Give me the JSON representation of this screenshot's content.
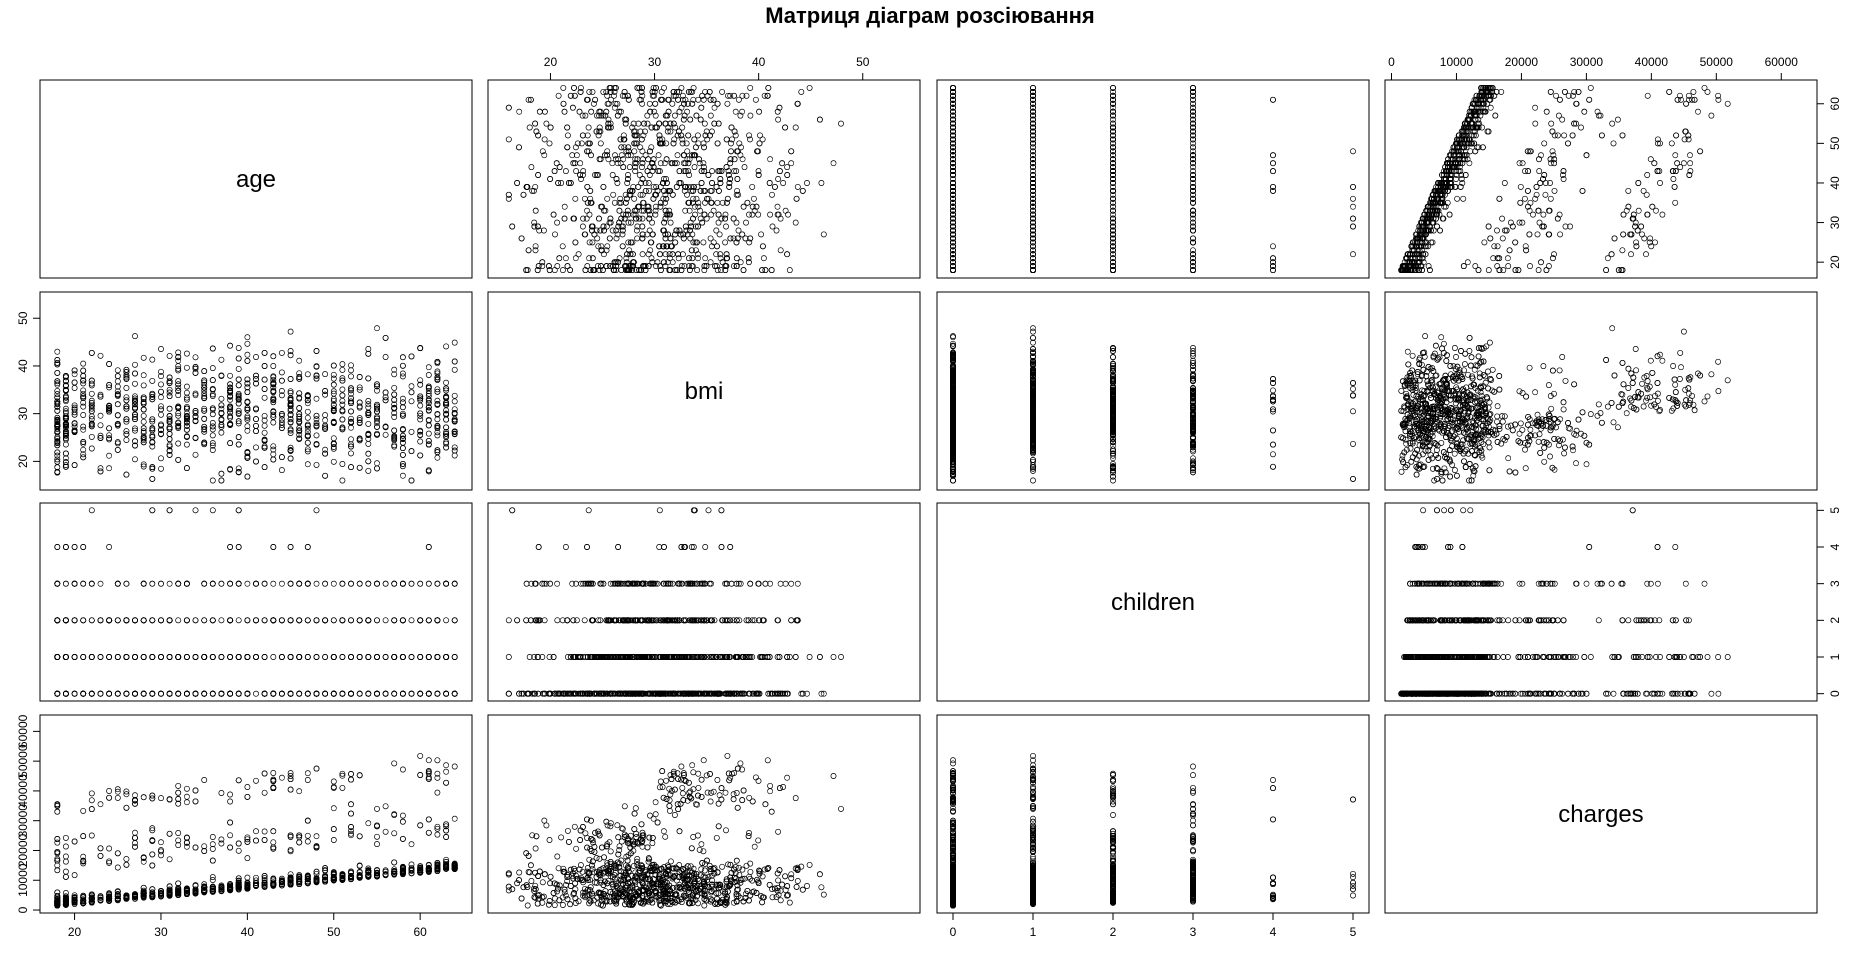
{
  "chart_data": {
    "type": "scatter",
    "subtype": "scatterplot-matrix",
    "title": "Матриця діаграм розсіювання",
    "variables": [
      {
        "key": "age",
        "label": "age",
        "range": [
          16,
          66
        ],
        "ticks": [
          {
            "v": 20,
            "label": "20"
          },
          {
            "v": 30,
            "label": "30"
          },
          {
            "v": 40,
            "label": "40"
          },
          {
            "v": 50,
            "label": "50"
          },
          {
            "v": 60,
            "label": "60"
          }
        ]
      },
      {
        "key": "bmi",
        "label": "bmi",
        "range": [
          14,
          55.5
        ],
        "ticks": [
          {
            "v": 20,
            "label": "20"
          },
          {
            "v": 30,
            "label": "30"
          },
          {
            "v": 40,
            "label": "40"
          },
          {
            "v": 50,
            "label": "50"
          }
        ]
      },
      {
        "key": "children",
        "label": "children",
        "range": [
          -0.2,
          5.2
        ],
        "ticks": [
          {
            "v": 0,
            "label": "0"
          },
          {
            "v": 1,
            "label": "1"
          },
          {
            "v": 2,
            "label": "2"
          },
          {
            "v": 3,
            "label": "3"
          },
          {
            "v": 4,
            "label": "4"
          },
          {
            "v": 5,
            "label": "5"
          }
        ]
      },
      {
        "key": "charges",
        "label": "charges",
        "range": [
          -1000,
          65500
        ],
        "ticks": [
          {
            "v": 0,
            "label": "0"
          },
          {
            "v": 10000,
            "label": "10000"
          },
          {
            "v": 20000,
            "label": "20000"
          },
          {
            "v": 30000,
            "label": "30000"
          },
          {
            "v": 40000,
            "label": "40000"
          },
          {
            "v": 50000,
            "label": "50000"
          },
          {
            "v": 60000,
            "label": "60000"
          }
        ]
      }
    ],
    "axes_placement": {
      "top": [
        1,
        3
      ],
      "bottom": [
        0,
        2
      ],
      "left": [
        1,
        3
      ],
      "right": [
        0,
        2
      ]
    },
    "marker": "open-circle",
    "grid": false,
    "observations": 1338
  }
}
